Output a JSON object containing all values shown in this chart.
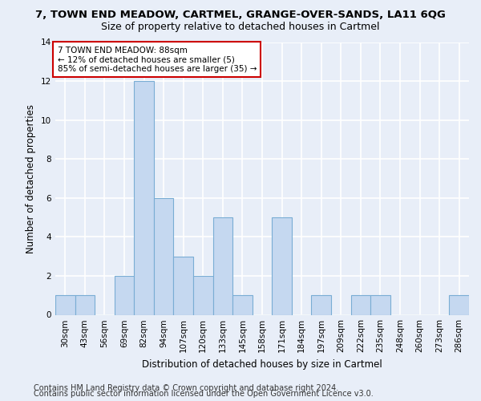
{
  "title1": "7, TOWN END MEADOW, CARTMEL, GRANGE-OVER-SANDS, LA11 6QG",
  "title2": "Size of property relative to detached houses in Cartmel",
  "xlabel": "Distribution of detached houses by size in Cartmel",
  "ylabel": "Number of detached properties",
  "categories": [
    "30sqm",
    "43sqm",
    "56sqm",
    "69sqm",
    "82sqm",
    "94sqm",
    "107sqm",
    "120sqm",
    "133sqm",
    "145sqm",
    "158sqm",
    "171sqm",
    "184sqm",
    "197sqm",
    "209sqm",
    "222sqm",
    "235sqm",
    "248sqm",
    "260sqm",
    "273sqm",
    "286sqm"
  ],
  "values": [
    1,
    1,
    0,
    2,
    12,
    6,
    3,
    2,
    5,
    1,
    0,
    5,
    0,
    1,
    0,
    1,
    1,
    0,
    0,
    0,
    1
  ],
  "bar_color": "#c5d8f0",
  "bar_edge_color": "#7aadd4",
  "ylim": [
    0,
    14
  ],
  "yticks": [
    0,
    2,
    4,
    6,
    8,
    10,
    12,
    14
  ],
  "annotation_text": "7 TOWN END MEADOW: 88sqm\n← 12% of detached houses are smaller (5)\n85% of semi-detached houses are larger (35) →",
  "annotation_box_color": "#ffffff",
  "annotation_box_edgecolor": "#cc0000",
  "footer1": "Contains HM Land Registry data © Crown copyright and database right 2024.",
  "footer2": "Contains public sector information licensed under the Open Government Licence v3.0.",
  "bg_color": "#e8eef8",
  "grid_color": "#ffffff",
  "title1_fontsize": 9.5,
  "title2_fontsize": 9,
  "axis_label_fontsize": 8.5,
  "tick_fontsize": 7.5,
  "footer_fontsize": 7
}
